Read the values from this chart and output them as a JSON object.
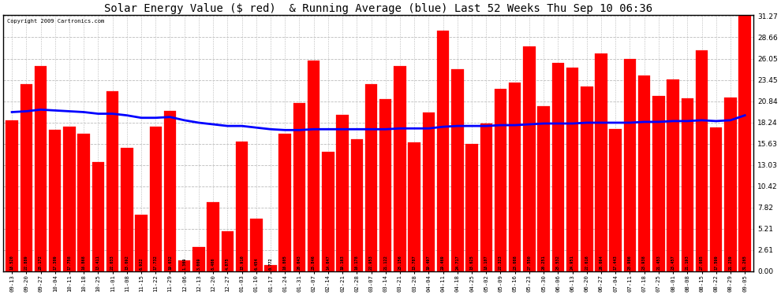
{
  "title": "Solar Energy Value ($ red)  & Running Average (blue) Last 52 Weeks Thu Sep 10 06:36",
  "copyright": "Copyright 2009 Cartronics.com",
  "bar_color": "#ff0000",
  "avg_color": "#0000ff",
  "background_color": "#ffffff",
  "plot_bg_color": "#ffffff",
  "grid_color": "#bbbbbb",
  "dates": [
    "09-13",
    "09-20",
    "09-27",
    "10-04",
    "10-11",
    "10-18",
    "10-25",
    "11-01",
    "11-08",
    "11-15",
    "11-22",
    "11-29",
    "12-06",
    "12-13",
    "12-20",
    "12-27",
    "01-03",
    "01-10",
    "01-17",
    "01-24",
    "01-31",
    "02-07",
    "02-14",
    "02-21",
    "02-28",
    "03-07",
    "03-14",
    "03-21",
    "03-28",
    "04-04",
    "04-11",
    "04-18",
    "04-25",
    "05-02",
    "05-09",
    "05-16",
    "05-23",
    "05-30",
    "06-06",
    "06-13",
    "06-20",
    "06-27",
    "07-04",
    "07-11",
    "07-18",
    "07-25",
    "08-01",
    "08-08",
    "08-15",
    "08-22",
    "08-29",
    "09-05"
  ],
  "weekly_values": [
    18.52,
    22.889,
    25.172,
    17.309,
    17.758,
    16.868,
    13.411,
    22.033,
    15.092,
    6.922,
    17.732,
    19.632,
    1.369,
    3.009,
    8.466,
    4.875,
    15.91,
    6.454,
    0.772,
    16.805,
    20.643,
    25.846,
    14.647,
    19.163,
    16.178,
    22.953,
    21.122,
    25.156,
    15.787,
    19.497,
    29.469,
    24.717,
    15.625,
    18.107,
    22.323,
    23.088,
    27.55,
    20.251,
    25.532,
    24.951,
    22.616,
    26.694,
    17.443,
    25.986,
    23.938,
    21.453,
    23.457,
    21.193,
    27.085,
    17.599,
    21.239,
    31.265
  ],
  "running_avg": [
    19.5,
    19.6,
    19.8,
    19.7,
    19.6,
    19.5,
    19.3,
    19.3,
    19.1,
    18.8,
    18.8,
    18.9,
    18.5,
    18.2,
    18.0,
    17.8,
    17.8,
    17.6,
    17.4,
    17.3,
    17.3,
    17.4,
    17.4,
    17.4,
    17.4,
    17.4,
    17.4,
    17.5,
    17.5,
    17.5,
    17.7,
    17.8,
    17.8,
    17.8,
    17.9,
    17.9,
    18.0,
    18.1,
    18.1,
    18.1,
    18.2,
    18.2,
    18.2,
    18.2,
    18.3,
    18.3,
    18.4,
    18.4,
    18.5,
    18.4,
    18.5,
    19.1
  ],
  "yticks": [
    0.0,
    2.61,
    5.21,
    7.82,
    10.42,
    13.03,
    15.63,
    18.24,
    20.84,
    23.45,
    26.05,
    28.66,
    31.27
  ],
  "ymax": 31.27,
  "ymin": 0.0,
  "title_fontsize": 10.0
}
